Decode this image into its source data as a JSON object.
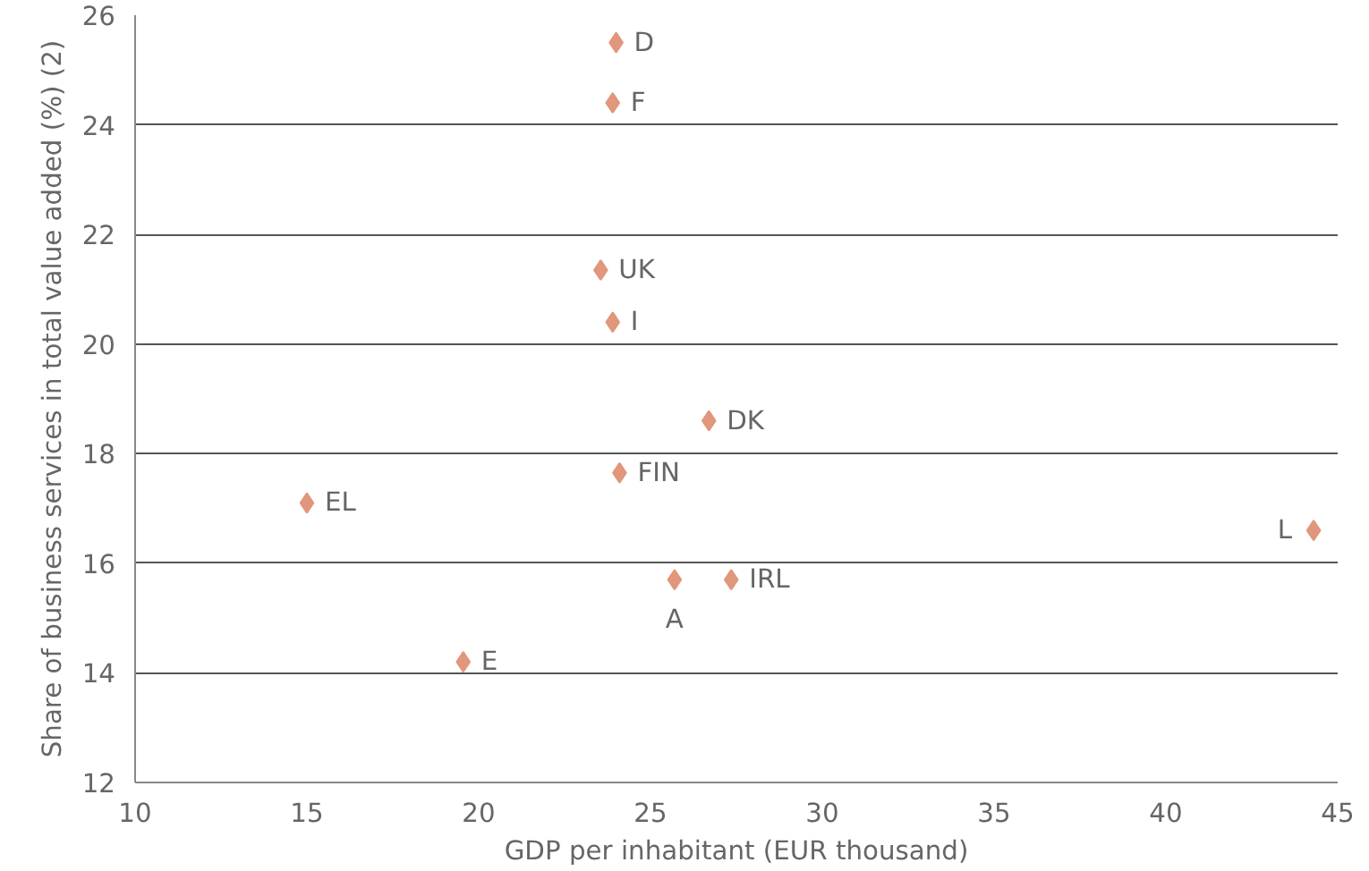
{
  "chart_data": {
    "type": "scatter",
    "xlabel": "GDP per inhabitant (EUR thousand)",
    "ylabel": "Share of business services in total value added (%) (2)",
    "x": [
      24.0,
      23.9,
      23.55,
      23.9,
      26.7,
      24.1,
      15.0,
      44.3,
      25.7,
      27.35,
      19.55
    ],
    "values": [
      25.5,
      24.4,
      21.35,
      20.4,
      18.6,
      17.65,
      17.1,
      16.6,
      15.7,
      15.7,
      14.2
    ],
    "color": "#e0977b",
    "marker": "diamond",
    "xlim": [
      10,
      45
    ],
    "xticks": [
      10,
      15,
      20,
      25,
      30,
      35,
      40,
      45
    ],
    "ylim": [
      12,
      26
    ],
    "yticks": [
      12,
      14,
      16,
      18,
      20,
      22,
      24,
      26
    ],
    "grid": "y",
    "annotations": [
      {
        "text": "D",
        "x": 24.0,
        "y": 25.5
      },
      {
        "text": "F",
        "x": 23.9,
        "y": 24.4
      },
      {
        "text": "UK",
        "x": 23.55,
        "y": 21.35
      },
      {
        "text": "I",
        "x": 23.9,
        "y": 20.4
      },
      {
        "text": "DK",
        "x": 26.7,
        "y": 18.6
      },
      {
        "text": "FIN",
        "x": 24.1,
        "y": 17.65
      },
      {
        "text": "EL",
        "x": 15.0,
        "y": 17.1
      },
      {
        "text": "L",
        "x": 44.3,
        "y": 16.6
      },
      {
        "text": "A",
        "x": 25.7,
        "y": 15.7
      },
      {
        "text": "IRL",
        "x": 27.35,
        "y": 15.7
      },
      {
        "text": "E",
        "x": 19.55,
        "y": 14.2
      }
    ]
  }
}
